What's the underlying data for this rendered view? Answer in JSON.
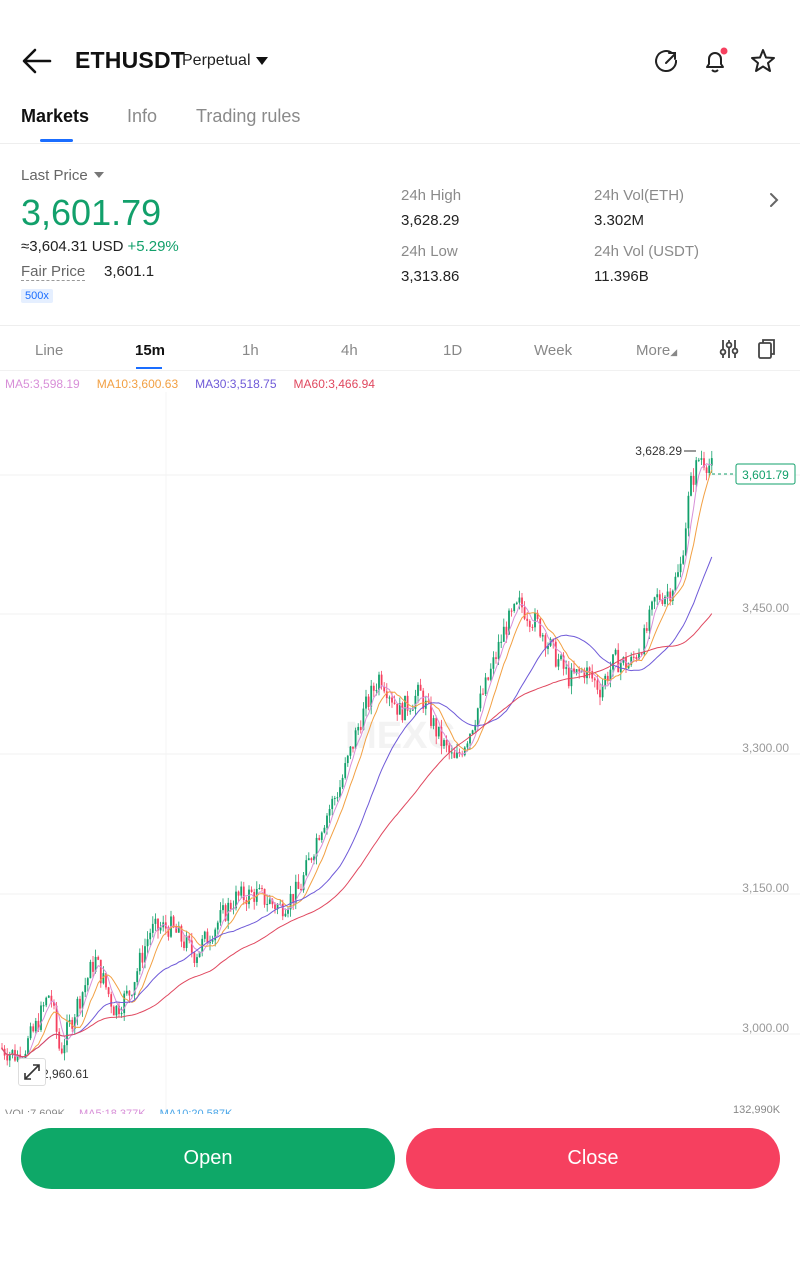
{
  "header": {
    "symbol": "ETHUSDT",
    "contract_type": "Perpetual",
    "icons": [
      "back-arrow-icon",
      "share-refresh-icon",
      "bell-icon",
      "star-icon"
    ]
  },
  "tabs": [
    {
      "label": "Markets",
      "active": true
    },
    {
      "label": "Info",
      "active": false
    },
    {
      "label": "Trading rules",
      "active": false
    }
  ],
  "stats": {
    "last_price_label": "Last Price",
    "last_price": "3,601.79",
    "usd_equivalent": "≈3,604.31 USD",
    "change": "+5.29%",
    "fair_price_label": "Fair Price",
    "fair_price": "3,601.1",
    "leverage": "500x",
    "high_label": "24h High",
    "high": "3,628.29",
    "low_label": "24h Low",
    "low": "3,313.86",
    "vol_eth_label": "24h Vol(ETH)",
    "vol_eth": "3.302M",
    "vol_usdt_label": "24h Vol (USDT)",
    "vol_usdt": "11.396B"
  },
  "timeframes": [
    {
      "label": "Line",
      "active": false
    },
    {
      "label": "15m",
      "active": true
    },
    {
      "label": "1h",
      "active": false
    },
    {
      "label": "4h",
      "active": false
    },
    {
      "label": "1D",
      "active": false
    },
    {
      "label": "Week",
      "active": false
    },
    {
      "label": "More",
      "active": false
    }
  ],
  "ma_legend": [
    {
      "label": "MA5:3,598.19",
      "color": "#d88fd8"
    },
    {
      "label": "MA10:3,600.63",
      "color": "#f2a043"
    },
    {
      "label": "MA30:3,518.75",
      "color": "#6f5ad8"
    },
    {
      "label": "MA60:3,466.94",
      "color": "#e0485f"
    }
  ],
  "chart": {
    "high_marker": "3,628.29",
    "low_marker": "2,960.61",
    "current_price_tag": "3,601.79",
    "y_ticks": [
      "3,450.00",
      "3,300.00",
      "3,150.00",
      "3,000.00"
    ],
    "watermark": "MEXC",
    "volume_legend": [
      "VOL:7,609K",
      "MA5:18,377K",
      "MA10:20,587K"
    ],
    "volume_max": "132,990K",
    "up_color": "#12a06b",
    "down_color": "#f6405f"
  },
  "chart_data": {
    "type": "candlestick",
    "y_ticks": [
      3450,
      3300,
      3150,
      3000
    ],
    "ylim": [
      2950,
      3650
    ],
    "high": 3628.29,
    "low": 2960.61,
    "last": 3601.79,
    "series": [
      {
        "name": "MA5",
        "value": 3598.19
      },
      {
        "name": "MA10",
        "value": 3600.63
      },
      {
        "name": "MA30",
        "value": 3518.75
      },
      {
        "name": "MA60",
        "value": 3466.94
      }
    ]
  },
  "footer": {
    "open_label": "Open",
    "close_label": "Close"
  }
}
